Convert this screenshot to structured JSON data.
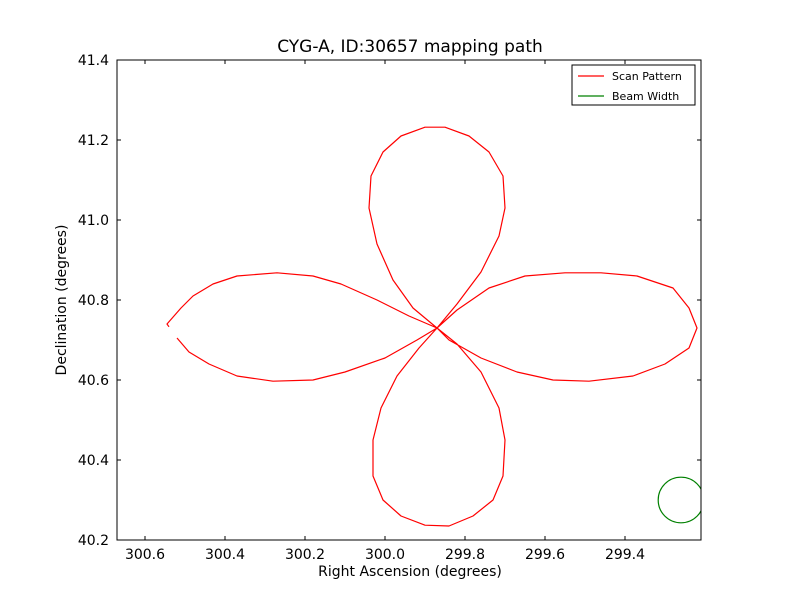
{
  "chart_data": {
    "type": "line",
    "title": "CYG-A, ID:30657 mapping path",
    "xlabel": "Right Ascension (degrees)",
    "ylabel": "Declination (degrees)",
    "xlim": [
      300.67,
      299.21
    ],
    "ylim": [
      40.2,
      41.4
    ],
    "x_inverted": true,
    "x_ticks": [
      "300.6",
      "300.4",
      "300.2",
      "300.0",
      "299.8",
      "299.6",
      "299.4"
    ],
    "x_tick_values": [
      300.6,
      300.4,
      300.2,
      300.0,
      299.8,
      299.6,
      299.4
    ],
    "y_ticks": [
      "40.2",
      "40.4",
      "40.6",
      "40.8",
      "41.0",
      "41.2",
      "41.4"
    ],
    "y_tick_values": [
      40.2,
      40.4,
      40.6,
      40.8,
      41.0,
      41.2,
      41.4
    ],
    "grid": false,
    "legend_position": "top-right",
    "series": [
      {
        "name": "Scan Pattern",
        "color": "#ff0000",
        "points": [
          [
            300.52,
            40.705
          ],
          [
            300.49,
            40.67
          ],
          [
            300.44,
            40.64
          ],
          [
            300.37,
            40.61
          ],
          [
            300.28,
            40.597
          ],
          [
            300.18,
            40.6
          ],
          [
            300.1,
            40.62
          ],
          [
            300.0,
            40.655
          ],
          [
            299.92,
            40.7
          ],
          [
            299.87,
            40.73
          ],
          [
            299.82,
            40.775
          ],
          [
            299.74,
            40.83
          ],
          [
            299.65,
            40.86
          ],
          [
            299.55,
            40.868
          ],
          [
            299.46,
            40.868
          ],
          [
            299.37,
            40.86
          ],
          [
            299.28,
            40.83
          ],
          [
            299.24,
            40.78
          ],
          [
            299.22,
            40.73
          ],
          [
            299.24,
            40.68
          ],
          [
            299.3,
            40.64
          ],
          [
            299.38,
            40.61
          ],
          [
            299.49,
            40.597
          ],
          [
            299.58,
            40.6
          ],
          [
            299.67,
            40.62
          ],
          [
            299.76,
            40.655
          ],
          [
            299.84,
            40.7
          ],
          [
            299.87,
            40.73
          ],
          [
            299.915,
            40.68
          ],
          [
            299.97,
            40.61
          ],
          [
            300.01,
            40.53
          ],
          [
            300.03,
            40.45
          ],
          [
            300.03,
            40.36
          ],
          [
            300.005,
            40.3
          ],
          [
            299.96,
            40.26
          ],
          [
            299.9,
            40.237
          ],
          [
            299.84,
            40.235
          ],
          [
            299.78,
            40.26
          ],
          [
            299.73,
            40.3
          ],
          [
            299.705,
            40.36
          ],
          [
            299.7,
            40.45
          ],
          [
            299.715,
            40.53
          ],
          [
            299.76,
            40.62
          ],
          [
            299.82,
            40.69
          ],
          [
            299.87,
            40.73
          ],
          [
            299.93,
            40.78
          ],
          [
            299.98,
            40.85
          ],
          [
            300.02,
            40.94
          ],
          [
            300.04,
            41.03
          ],
          [
            300.035,
            41.11
          ],
          [
            300.005,
            41.17
          ],
          [
            299.96,
            41.21
          ],
          [
            299.9,
            41.232
          ],
          [
            299.85,
            41.232
          ],
          [
            299.79,
            41.21
          ],
          [
            299.74,
            41.17
          ],
          [
            299.705,
            41.11
          ],
          [
            299.7,
            41.03
          ],
          [
            299.715,
            40.96
          ],
          [
            299.76,
            40.87
          ],
          [
            299.82,
            40.79
          ],
          [
            299.87,
            40.73
          ],
          [
            299.94,
            40.76
          ],
          [
            300.02,
            40.8
          ],
          [
            300.11,
            40.84
          ],
          [
            300.18,
            40.86
          ],
          [
            300.27,
            40.868
          ],
          [
            300.37,
            40.86
          ],
          [
            300.43,
            40.84
          ],
          [
            300.48,
            40.81
          ],
          [
            300.51,
            40.78
          ],
          [
            300.545,
            40.74
          ],
          [
            300.54,
            40.733
          ]
        ]
      },
      {
        "name": "Beam Width",
        "color": "#008000",
        "circle": {
          "center": [
            299.26,
            40.3
          ],
          "radius_deg": 0.057
        }
      }
    ]
  }
}
